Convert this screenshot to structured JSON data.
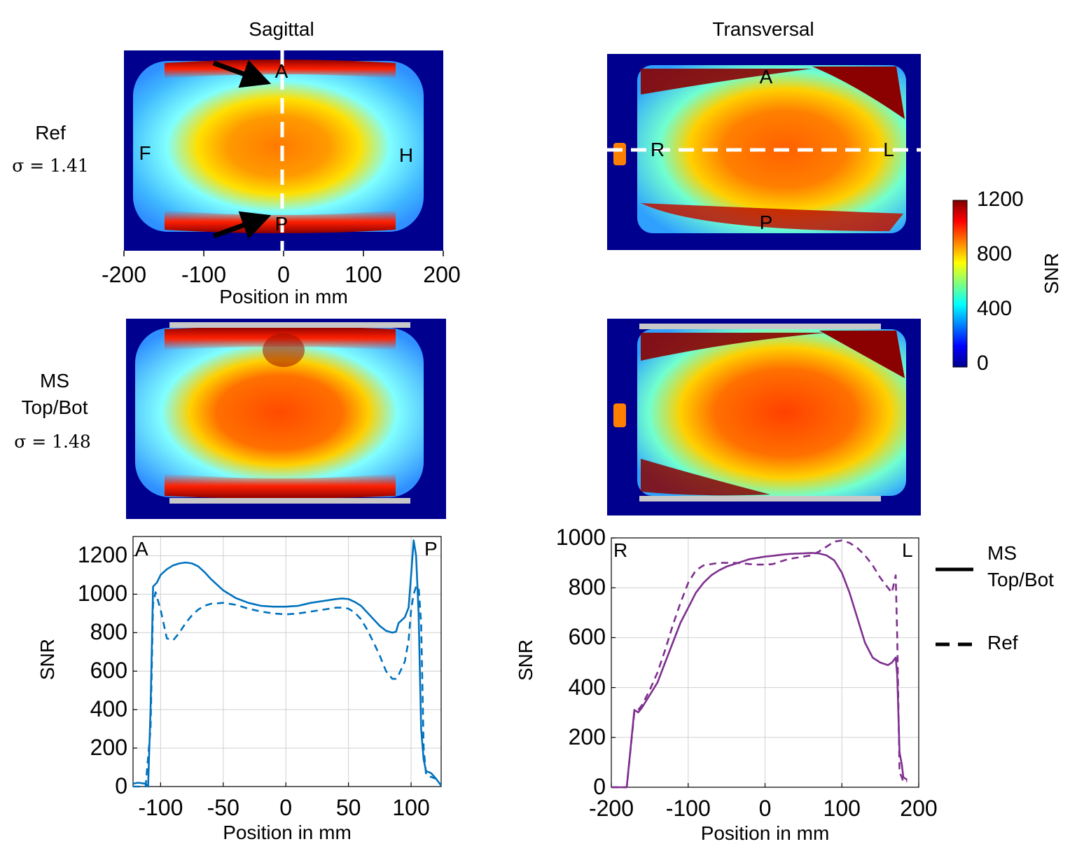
{
  "titles": {
    "left": "Sagittal",
    "right": "Transversal"
  },
  "rows": {
    "ref": {
      "name": "Ref",
      "sigma": "σ = 1.41"
    },
    "ms": {
      "name_line1": "MS",
      "name_line2": "Top/Bot",
      "sigma": "σ = 1.48"
    }
  },
  "sagittal_map": {
    "xticks": [
      "-200",
      "-100",
      "0",
      "100",
      "200"
    ],
    "xlabel": "Position in mm",
    "orientation_labels": {
      "a": "A",
      "p": "P",
      "f": "F",
      "h": "H"
    }
  },
  "transversal_map": {
    "orientation_labels": {
      "a": "A",
      "p": "P",
      "r": "R",
      "l": "L"
    }
  },
  "colorbar": {
    "ticks": [
      "1200",
      "800",
      "400",
      "0"
    ],
    "label": "SNR"
  },
  "legend": {
    "solid_line1": "MS",
    "solid_line2": "Top/Bot",
    "dashed": "Ref"
  },
  "colors": {
    "sagittal": "#0072bd",
    "transversal": "#7e2f8e",
    "guide": "#ffffff",
    "holder": "#c8c8c8"
  },
  "chart_data": [
    {
      "type": "line",
      "panel": "sagittal-profile",
      "xlabel": "Position in mm",
      "ylabel": "SNR",
      "xlim": [
        -122,
        124
      ],
      "ylim": [
        0,
        1300
      ],
      "xticks": [
        -100,
        -50,
        0,
        50,
        100
      ],
      "yticks": [
        0,
        200,
        400,
        600,
        800,
        1000,
        1200
      ],
      "corner_labels": {
        "left": "A",
        "right": "P"
      },
      "grid": true,
      "series": [
        {
          "name": "MS Top/Bot",
          "style": "solid",
          "x": [
            -122,
            -118,
            -112,
            -110,
            -108,
            -106,
            -103,
            -100,
            -95,
            -90,
            -85,
            -80,
            -75,
            -70,
            -65,
            -60,
            -50,
            -40,
            -30,
            -20,
            -10,
            0,
            10,
            20,
            30,
            40,
            45,
            50,
            55,
            60,
            65,
            70,
            75,
            80,
            85,
            88,
            90,
            95,
            98,
            100,
            102,
            104,
            106,
            108,
            110,
            112,
            116,
            120,
            124
          ],
          "y": [
            15,
            20,
            15,
            0,
            400,
            1040,
            1060,
            1100,
            1130,
            1150,
            1160,
            1165,
            1160,
            1145,
            1115,
            1080,
            1020,
            980,
            955,
            940,
            935,
            935,
            940,
            955,
            965,
            975,
            978,
            975,
            960,
            940,
            905,
            870,
            835,
            810,
            800,
            805,
            850,
            880,
            930,
            1100,
            1280,
            1200,
            900,
            300,
            140,
            80,
            70,
            40,
            5
          ]
        },
        {
          "name": "Ref",
          "style": "dashed",
          "x": [
            -122,
            -118,
            -112,
            -108,
            -106,
            -104,
            -100,
            -95,
            -90,
            -85,
            -80,
            -75,
            -70,
            -65,
            -60,
            -50,
            -40,
            -30,
            -20,
            -10,
            0,
            10,
            20,
            30,
            40,
            45,
            50,
            55,
            60,
            65,
            70,
            75,
            80,
            85,
            88,
            90,
            95,
            98,
            100,
            102,
            104,
            106,
            108,
            110,
            112,
            116,
            120
          ],
          "y": [
            0,
            0,
            0,
            300,
            950,
            1010,
            920,
            770,
            760,
            800,
            850,
            890,
            920,
            940,
            950,
            955,
            945,
            925,
            910,
            900,
            895,
            900,
            910,
            920,
            930,
            930,
            925,
            905,
            870,
            815,
            750,
            680,
            600,
            560,
            560,
            580,
            650,
            760,
            920,
            1000,
            1040,
            1040,
            850,
            200,
            60,
            50,
            40
          ]
        }
      ]
    },
    {
      "type": "line",
      "panel": "transversal-profile",
      "xlabel": "Position in mm",
      "ylabel": "SNR",
      "xlim": [
        -200,
        200
      ],
      "ylim": [
        0,
        1000
      ],
      "xticks": [
        -200,
        -100,
        0,
        100,
        200
      ],
      "yticks": [
        0,
        200,
        400,
        600,
        800,
        1000
      ],
      "corner_labels": {
        "left": "R",
        "right": "L"
      },
      "grid": true,
      "series": [
        {
          "name": "MS Top/Bot",
          "style": "solid",
          "x": [
            -200,
            -190,
            -180,
            -170,
            -165,
            -160,
            -150,
            -140,
            -130,
            -120,
            -110,
            -100,
            -90,
            -80,
            -70,
            -60,
            -50,
            -40,
            -30,
            -20,
            -10,
            0,
            10,
            20,
            30,
            40,
            50,
            60,
            70,
            80,
            90,
            100,
            110,
            120,
            130,
            140,
            150,
            160,
            165,
            170,
            172,
            175,
            178,
            180,
            185
          ],
          "y": [
            0,
            0,
            0,
            310,
            300,
            320,
            370,
            420,
            500,
            580,
            660,
            720,
            780,
            820,
            850,
            870,
            885,
            895,
            905,
            915,
            920,
            925,
            928,
            932,
            935,
            937,
            938,
            940,
            938,
            930,
            910,
            860,
            780,
            680,
            580,
            520,
            500,
            490,
            500,
            520,
            450,
            140,
            90,
            40,
            30
          ]
        },
        {
          "name": "Ref",
          "style": "dashed",
          "x": [
            -200,
            -190,
            -180,
            -175,
            -170,
            -165,
            -160,
            -150,
            -140,
            -130,
            -120,
            -110,
            -100,
            -90,
            -80,
            -70,
            -60,
            -50,
            -40,
            -30,
            -20,
            -10,
            0,
            10,
            20,
            30,
            40,
            50,
            60,
            70,
            80,
            90,
            100,
            110,
            120,
            130,
            140,
            150,
            160,
            165,
            170,
            172,
            175,
            178,
            180,
            185
          ],
          "y": [
            0,
            0,
            0,
            150,
            300,
            310,
            330,
            390,
            460,
            550,
            650,
            740,
            820,
            870,
            890,
            895,
            900,
            900,
            900,
            898,
            895,
            893,
            893,
            895,
            905,
            915,
            920,
            925,
            930,
            945,
            965,
            985,
            990,
            980,
            960,
            930,
            890,
            840,
            800,
            780,
            850,
            600,
            60,
            40,
            20,
            25
          ]
        }
      ]
    }
  ]
}
